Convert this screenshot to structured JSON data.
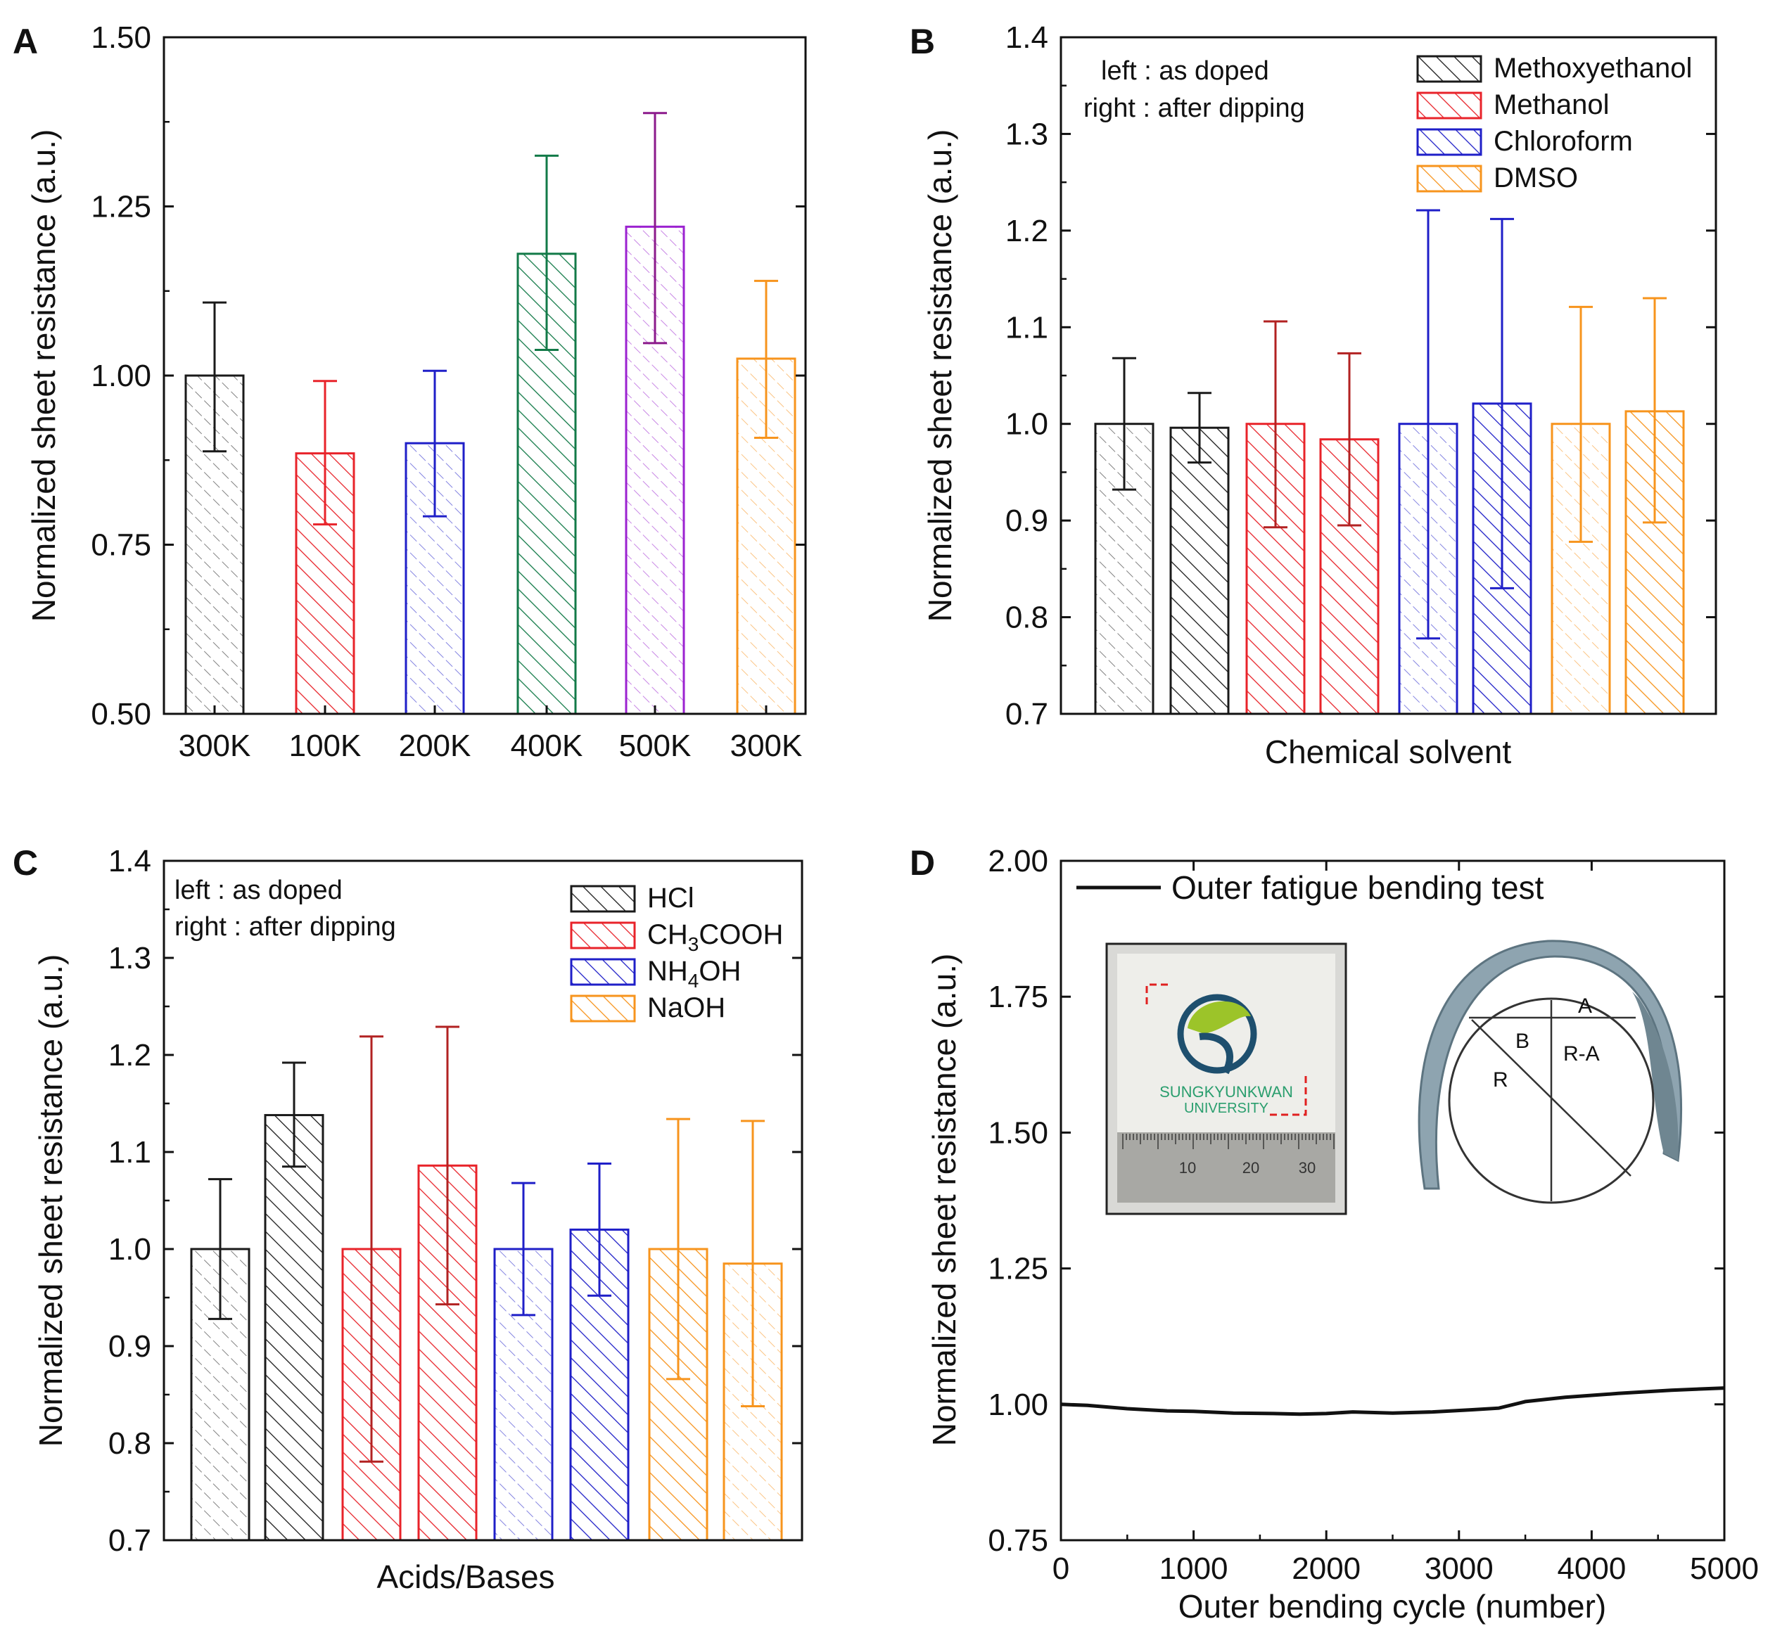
{
  "chart_data": [
    {
      "panel": "A",
      "type": "bar",
      "xlabel": "",
      "ylabel": "Normalized sheet resistance (a.u.)",
      "ylim": [
        0.5,
        1.5
      ],
      "yticks": [
        "0.50",
        "0.75",
        "1.00",
        "1.25",
        "1.50"
      ],
      "categories": [
        "300K",
        "100K",
        "200K",
        "400K",
        "500K",
        "300K"
      ],
      "values": [
        1.0,
        0.885,
        0.9,
        1.18,
        1.22,
        1.025
      ],
      "err_low": [
        0.888,
        0.78,
        0.792,
        1.038,
        1.048,
        0.908
      ],
      "err_high": [
        1.108,
        0.992,
        1.007,
        1.325,
        1.388,
        1.14
      ],
      "colors": [
        "#1a1a1a",
        "#e8232a",
        "#1f1fc8",
        "#127a48",
        "#9b22d0",
        "#f7941d"
      ],
      "error_colors": [
        "#1a1a1a",
        "#e8232a",
        "#1f1fc8",
        "#127a48",
        "#8b1a8b",
        "#f7941d"
      ],
      "faded": [
        true,
        false,
        true,
        false,
        true,
        true
      ]
    },
    {
      "panel": "B",
      "type": "bar",
      "xlabel": "Chemical solvent",
      "ylabel": "Normalized sheet resistance (a.u.)",
      "ylim": [
        0.7,
        1.4
      ],
      "yticks": [
        "0.7",
        "0.8",
        "0.9",
        "1.0",
        "1.1",
        "1.2",
        "1.3",
        "1.4"
      ],
      "notes": [
        "left : as doped",
        "right : after dipping"
      ],
      "legend": [
        "Methoxyethanol",
        "Methanol",
        "Chloroform",
        "DMSO"
      ],
      "legend_colors": [
        "#1a1a1a",
        "#e8232a",
        "#1f1fc8",
        "#f7941d"
      ],
      "values": [
        1.0,
        0.996,
        1.0,
        0.984,
        1.0,
        1.021,
        1.0,
        1.013
      ],
      "err_low": [
        0.932,
        0.96,
        0.893,
        0.895,
        0.778,
        0.83,
        0.878,
        0.898
      ],
      "err_high": [
        1.068,
        1.032,
        1.106,
        1.073,
        1.221,
        1.212,
        1.121,
        1.13
      ],
      "colors": [
        "#1a1a1a",
        "#1a1a1a",
        "#e8232a",
        "#e8232a",
        "#1f1fc8",
        "#1f1fc8",
        "#f7941d",
        "#f7941d"
      ],
      "error_colors": [
        "#1a1a1a",
        "#1a1a1a",
        "#b22222",
        "#b22222",
        "#1f1fc8",
        "#1f1fc8",
        "#f7941d",
        "#f7941d"
      ],
      "faded": [
        true,
        false,
        false,
        false,
        true,
        false,
        true,
        false
      ]
    },
    {
      "panel": "C",
      "type": "bar",
      "xlabel": "Acids/Bases",
      "ylabel": "Normalized sheet resistance (a.u.)",
      "ylim": [
        0.7,
        1.4
      ],
      "yticks": [
        "0.7",
        "0.8",
        "0.9",
        "1.0",
        "1.1",
        "1.2",
        "1.3",
        "1.4"
      ],
      "notes": [
        "left : as doped",
        "right : after dipping"
      ],
      "legend": [
        {
          "text": "HCl",
          "sub": "",
          "rest": ""
        },
        {
          "text": "CH",
          "sub": "3",
          "rest": "COOH"
        },
        {
          "text": "NH",
          "sub": "4",
          "rest": "OH"
        },
        {
          "text": "NaOH",
          "sub": "",
          "rest": ""
        }
      ],
      "legend_colors": [
        "#1a1a1a",
        "#e8232a",
        "#1f1fc8",
        "#f7941d"
      ],
      "values": [
        1.0,
        1.138,
        1.0,
        1.086,
        1.0,
        1.02,
        1.0,
        0.985
      ],
      "err_low": [
        0.928,
        1.085,
        0.781,
        0.943,
        0.932,
        0.952,
        0.866,
        0.838
      ],
      "err_high": [
        1.072,
        1.192,
        1.219,
        1.229,
        1.068,
        1.088,
        1.134,
        1.132
      ],
      "colors": [
        "#1a1a1a",
        "#1a1a1a",
        "#e8232a",
        "#e8232a",
        "#1f1fc8",
        "#1f1fc8",
        "#f7941d",
        "#f7941d"
      ],
      "error_colors": [
        "#1a1a1a",
        "#1a1a1a",
        "#b22222",
        "#b22222",
        "#1f1fc8",
        "#1f1fc8",
        "#f7941d",
        "#f7941d"
      ],
      "faded": [
        true,
        false,
        false,
        false,
        true,
        false,
        false,
        true
      ]
    },
    {
      "panel": "D",
      "type": "line",
      "xlabel": "Outer bending cycle (number)",
      "ylabel": "Normalized sheet resistance (a.u.)",
      "xlim": [
        0,
        5000
      ],
      "ylim": [
        0.75,
        2.0
      ],
      "xticks": [
        "0",
        "1000",
        "2000",
        "3000",
        "4000",
        "5000"
      ],
      "yticks": [
        "0.75",
        "1.00",
        "1.25",
        "1.50",
        "1.75",
        "2.00"
      ],
      "legend": [
        "Outer fatigue bending test"
      ],
      "series": [
        {
          "name": "Outer fatigue bending test",
          "x": [
            0,
            200,
            500,
            800,
            1000,
            1300,
            1600,
            1800,
            2000,
            2200,
            2500,
            2800,
            3100,
            3300,
            3500,
            3800,
            4200,
            4600,
            5000
          ],
          "y": [
            1.0,
            0.998,
            0.992,
            0.988,
            0.987,
            0.984,
            0.983,
            0.982,
            0.983,
            0.986,
            0.984,
            0.986,
            0.99,
            0.993,
            1.005,
            1.013,
            1.02,
            1.026,
            1.03
          ]
        }
      ],
      "inset_photo_texts": [
        "SUNGKYUNKWAN",
        "UNIVERSITY"
      ],
      "ruler_numbers": [
        "10",
        "20",
        "30"
      ],
      "diagram_labels": [
        "A",
        "B",
        "R",
        "R-A"
      ]
    }
  ]
}
